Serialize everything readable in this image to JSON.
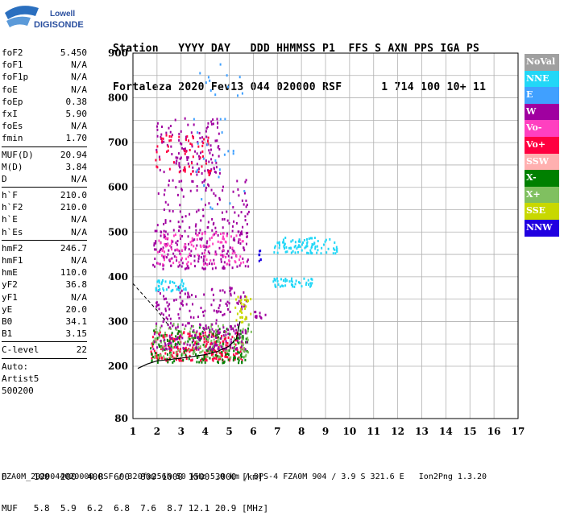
{
  "logo": {
    "line1": "Lowell",
    "line2": "DIGISONDE"
  },
  "header": {
    "line1": "Station   YYYY DAY   DDD HHMMSS P1  FFS S AXN PPS IGA PS",
    "line2": "Fortaleza 2020 Fev13 044 020000 RSF      1 714 100 10+ 11"
  },
  "params_group1": [
    {
      "name": "foF2",
      "value": "5.450"
    },
    {
      "name": "foF1",
      "value": "N/A"
    },
    {
      "name": "foF1p",
      "value": "N/A"
    },
    {
      "name": "foE",
      "value": "N/A"
    },
    {
      "name": "foEp",
      "value": "0.38"
    },
    {
      "name": "fxI",
      "value": "5.90"
    },
    {
      "name": "foEs",
      "value": "N/A"
    },
    {
      "name": "fmin",
      "value": "1.70"
    }
  ],
  "params_group2": [
    {
      "name": "MUF(D)",
      "value": "20.94"
    },
    {
      "name": "M(D)",
      "value": "3.84"
    },
    {
      "name": "D",
      "value": "N/A"
    }
  ],
  "params_group3": [
    {
      "name": "h`F",
      "value": "210.0"
    },
    {
      "name": "h`F2",
      "value": "210.0"
    },
    {
      "name": "h`E",
      "value": "N/A"
    },
    {
      "name": "h`Es",
      "value": "N/A"
    }
  ],
  "params_group4": [
    {
      "name": "hmF2",
      "value": "246.7"
    },
    {
      "name": "hmF1",
      "value": "N/A"
    },
    {
      "name": "hmE",
      "value": "110.0"
    },
    {
      "name": "yF2",
      "value": "36.8"
    },
    {
      "name": "yF1",
      "value": "N/A"
    },
    {
      "name": "yE",
      "value": "20.0"
    },
    {
      "name": "B0",
      "value": "34.1"
    },
    {
      "name": "B1",
      "value": "3.15"
    }
  ],
  "params_group5": [
    {
      "name": "C-level",
      "value": "22"
    }
  ],
  "auto_lines": [
    "Auto:",
    "Artist5",
    "500200"
  ],
  "dmuf": {
    "line1": "D     100  200  400  600  800 1000 1500 3000 [km]",
    "line2": "MUF   5.8  5.9  6.2  6.8  7.6  8.7 12.1 20.9 [MHz]"
  },
  "footer": "FZA0M_2020044020000.RSF / 320fx256h 50 kHz 5.0 km / DPS-4 FZA0M 904 / 3.9 S 321.6 E   Ion2Png 1.3.20",
  "legend": [
    {
      "label": "NoVal",
      "color": "#a0a0a0"
    },
    {
      "label": "NNE",
      "color": "#21d7f7"
    },
    {
      "label": "E",
      "color": "#40a0ff"
    },
    {
      "label": "W",
      "color": "#a000a0"
    },
    {
      "label": "Vo-",
      "color": "#ff40c0"
    },
    {
      "label": "Vo+",
      "color": "#ff0040"
    },
    {
      "label": "SSW",
      "color": "#ffb0b0"
    },
    {
      "label": "X-",
      "color": "#008000"
    },
    {
      "label": "X+",
      "color": "#80c060"
    },
    {
      "label": "SSE",
      "color": "#c8d800"
    },
    {
      "label": "NNW",
      "color": "#2000e0"
    }
  ],
  "chart_data": {
    "type": "scatter",
    "title": "",
    "xlabel": "",
    "ylabel": "",
    "xlim": [
      1,
      17
    ],
    "ylim": [
      80,
      900
    ],
    "x_ticks": [
      "1",
      "2",
      "3",
      "4",
      "5",
      "6",
      "7",
      "8",
      "9",
      "10",
      "11",
      "12",
      "13",
      "14",
      "15",
      "16",
      "17"
    ],
    "y_ticks": [
      "80",
      "200",
      "300",
      "400",
      "500",
      "600",
      "700",
      "800",
      "900"
    ],
    "grid": true,
    "legend_position": "right",
    "profile_curve": {
      "x": [
        1.2,
        1.6,
        2.0,
        2.5,
        3.0,
        3.5,
        4.0,
        4.5,
        5.0,
        5.3,
        5.45
      ],
      "y": [
        195,
        205,
        212,
        215,
        218,
        222,
        226,
        233,
        245,
        262,
        300
      ]
    },
    "dashed_extension": {
      "x": [
        1.0,
        1.5,
        2.0,
        2.5
      ],
      "y": [
        385,
        355,
        325,
        290
      ]
    },
    "trace_clusters": [
      {
        "series": "Vo+",
        "x": [
          1.7,
          5.6
        ],
        "y": [
          215,
          280
        ],
        "n": 260
      },
      {
        "series": "X-",
        "x": [
          1.7,
          5.8
        ],
        "y": [
          210,
          290
        ],
        "n": 170
      },
      {
        "series": "X+",
        "x": [
          1.8,
          5.9
        ],
        "y": [
          220,
          300
        ],
        "n": 150
      },
      {
        "series": "W",
        "x": [
          1.8,
          5.7
        ],
        "y": [
          240,
          380
        ],
        "n": 240
      },
      {
        "series": "W",
        "x": [
          1.8,
          5.8
        ],
        "y": [
          420,
          520
        ],
        "n": 200
      },
      {
        "series": "Vo-",
        "x": [
          2.0,
          5.6
        ],
        "y": [
          430,
          500
        ],
        "n": 110
      },
      {
        "series": "W",
        "x": [
          2.0,
          5.8
        ],
        "y": [
          520,
          620
        ],
        "n": 90
      },
      {
        "series": "W",
        "x": [
          1.9,
          4.6
        ],
        "y": [
          630,
          760
        ],
        "n": 120
      },
      {
        "series": "Vo+",
        "x": [
          1.9,
          4.2
        ],
        "y": [
          630,
          720
        ],
        "n": 60
      },
      {
        "series": "NNE",
        "x": [
          6.8,
          9.5
        ],
        "y": [
          455,
          490
        ],
        "n": 90
      },
      {
        "series": "NNE",
        "x": [
          6.8,
          8.5
        ],
        "y": [
          380,
          400
        ],
        "n": 45
      },
      {
        "series": "NNE",
        "x": [
          1.8,
          3.2
        ],
        "y": [
          370,
          395
        ],
        "n": 40
      },
      {
        "series": "NNW",
        "x": [
          6.2,
          6.3
        ],
        "y": [
          430,
          470
        ],
        "n": 8
      },
      {
        "series": "W",
        "x": [
          6.0,
          6.5
        ],
        "y": [
          310,
          325
        ],
        "n": 12
      },
      {
        "series": "SSE",
        "x": [
          5.2,
          5.9
        ],
        "y": [
          300,
          360
        ],
        "n": 30
      },
      {
        "series": "E",
        "x": [
          3.5,
          5.6
        ],
        "y": [
          550,
          880
        ],
        "n": 35
      }
    ]
  }
}
